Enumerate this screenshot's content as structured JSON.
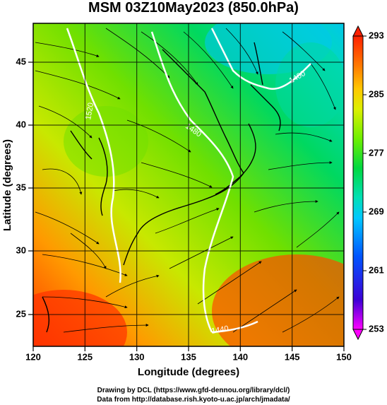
{
  "title": "MSM 03Z10May2023 (850.0hPa)",
  "axes": {
    "x_title": "Longitude (degrees)",
    "y_title": "Latitude  (degrees)",
    "x_ticks": [
      "120",
      "125",
      "130",
      "135",
      "140",
      "145",
      "150"
    ],
    "y_ticks": [
      "45",
      "40",
      "35",
      "30",
      "25"
    ]
  },
  "colorbar": {
    "ticks": [
      "293",
      "285",
      "277",
      "269",
      "261",
      "253"
    ],
    "colors": [
      "#ff00ff",
      "#3d00d6",
      "#0055ff",
      "#00c8ff",
      "#00e0b4",
      "#00d840",
      "#6ef000",
      "#dcf000",
      "#ffc800",
      "#ff7800",
      "#ff2000"
    ]
  },
  "contours": [
    "1520",
    "1480",
    "1440",
    "1400"
  ],
  "credits": {
    "line1": "Drawing by DCL (https://www.gfd-dennou.org/library/dcl/)",
    "line2": "Data from http://database.rish.kyoto-u.ac.jp/arch/jmadata/"
  },
  "chart_data": {
    "type": "heatmap",
    "title": "MSM 03Z10May2023 (850.0hPa)",
    "xlabel": "Longitude (degrees)",
    "ylabel": "Latitude  (degrees)",
    "xlim": [
      120,
      150
    ],
    "ylim": [
      22.4,
      48
    ],
    "x_ticks": [
      120,
      125,
      130,
      135,
      140,
      145,
      150
    ],
    "y_ticks": [
      25,
      30,
      35,
      40,
      45
    ],
    "colorbar_range": [
      253,
      293
    ],
    "colorbar_ticks": [
      293,
      285,
      277,
      269,
      261,
      253
    ],
    "contour_labels": [
      "1520",
      "1480",
      "1440",
      "1400"
    ],
    "grid": true
  }
}
